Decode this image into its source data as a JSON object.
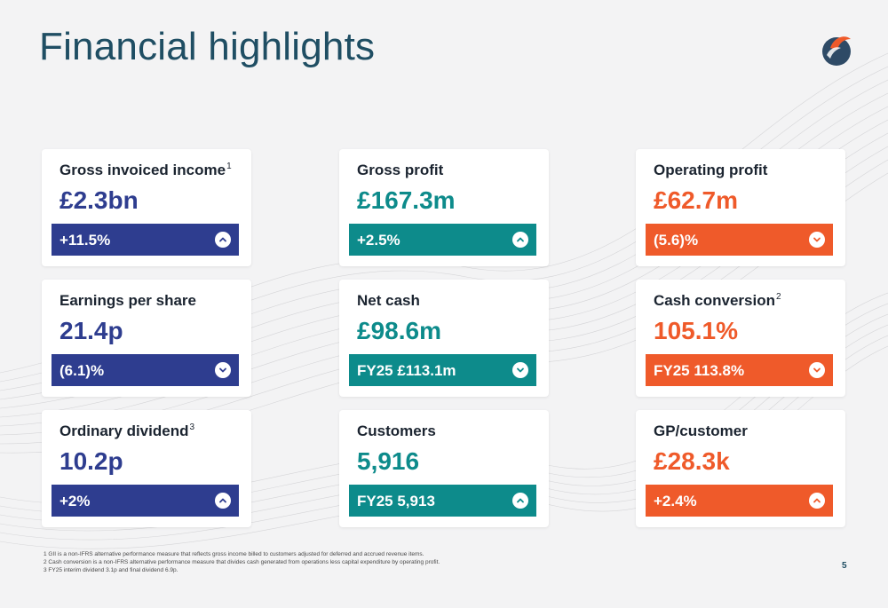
{
  "page": {
    "title": "Financial highlights",
    "number": "5"
  },
  "colors": {
    "blue": "#2e3d8f",
    "teal": "#0d8b8b",
    "orange": "#ef5a2a",
    "title": "#1f4e63"
  },
  "cards": {
    "gii": {
      "label": "Gross invoiced income",
      "note": "1",
      "value": "£2.3bn",
      "change": "+11.5%",
      "direction": "up",
      "icon": "chevron-up-icon"
    },
    "gp": {
      "label": "Gross profit",
      "value": "£167.3m",
      "change": "+2.5%",
      "direction": "up",
      "icon": "chevron-up-icon"
    },
    "op": {
      "label": "Operating profit",
      "value": "£62.7m",
      "change": "(5.6)%",
      "direction": "down",
      "icon": "chevron-down-icon"
    },
    "eps": {
      "label": "Earnings per share",
      "value": "21.4p",
      "change": "(6.1)%",
      "direction": "down",
      "icon": "chevron-down-icon"
    },
    "netcash": {
      "label": "Net cash",
      "value": "£98.6m",
      "change": "FY25 £113.1m",
      "direction": "down",
      "icon": "chevron-down-icon"
    },
    "cashconv": {
      "label": "Cash conversion",
      "note": "2",
      "value": "105.1%",
      "change": "FY25 113.8%",
      "direction": "down",
      "icon": "chevron-down-icon"
    },
    "dividend": {
      "label": "Ordinary dividend",
      "note": "3",
      "value": "10.2p",
      "change": "+2%",
      "direction": "up",
      "icon": "chevron-up-icon"
    },
    "customers": {
      "label": "Customers",
      "value": "5,916",
      "change": "FY25 5,913",
      "direction": "up",
      "icon": "chevron-up-icon"
    },
    "gpcust": {
      "label": "GP/customer",
      "value": "£28.3k",
      "change": "+2.4%",
      "direction": "up",
      "icon": "chevron-up-icon"
    }
  },
  "footnotes": [
    "1 GII is a non-IFRS alternative performance measure that reflects gross income billed to customers adjusted for deferred and accrued revenue items.",
    "2 Cash conversion is a non-IFRS alternative performance measure that divides cash generated from operations less capital expenditure by operating profit.",
    "3 FY25 interim dividend 3.1p and final dividend 6.9p."
  ]
}
